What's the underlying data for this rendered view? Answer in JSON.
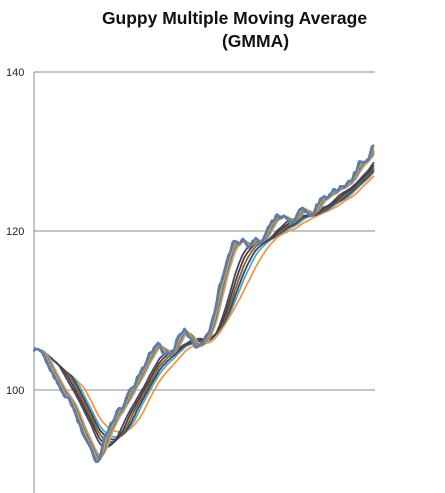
{
  "chart_data": {
    "type": "line",
    "title": [
      "Guppy Multiple Moving Average",
      "(GMMA)"
    ],
    "xlabel": "",
    "ylabel": "",
    "ylim": [
      89,
      142
    ],
    "yticks": [
      100,
      120,
      140
    ],
    "gridlines": true,
    "legend": "none",
    "x_range": [
      0,
      100
    ],
    "price_path": [
      [
        0,
        105.3
      ],
      [
        1,
        105.1
      ],
      [
        2,
        104.6
      ],
      [
        3,
        103.8
      ],
      [
        4,
        102.9
      ],
      [
        5,
        102.0
      ],
      [
        6,
        101.2
      ],
      [
        7,
        100.3
      ],
      [
        8,
        99.7
      ],
      [
        10,
        98.7
      ],
      [
        11,
        98.0
      ],
      [
        12,
        96.9
      ],
      [
        13,
        95.6
      ],
      [
        14,
        94.6
      ],
      [
        15,
        93.8
      ],
      [
        16,
        92.9
      ],
      [
        17,
        91.8
      ],
      [
        18,
        90.6
      ],
      [
        19,
        91.4
      ],
      [
        20,
        93.5
      ],
      [
        21,
        94.7
      ],
      [
        22,
        95.6
      ],
      [
        23,
        96.2
      ],
      [
        24,
        97.0
      ],
      [
        25,
        97.6
      ],
      [
        26,
        98.3
      ],
      [
        27,
        99.2
      ],
      [
        28,
        100.2
      ],
      [
        29,
        100.4
      ],
      [
        30,
        101.4
      ],
      [
        31,
        102.2
      ],
      [
        32,
        103.0
      ],
      [
        33,
        104.0
      ],
      [
        34,
        104.8
      ],
      [
        35,
        105.3
      ],
      [
        36,
        105.8
      ],
      [
        37,
        105.1
      ],
      [
        38,
        104.3
      ],
      [
        39,
        104.8
      ],
      [
        40,
        104.2
      ],
      [
        41,
        105.4
      ],
      [
        42,
        106.4
      ],
      [
        43,
        107.2
      ],
      [
        44,
        107.6
      ],
      [
        45,
        106.9
      ],
      [
        46,
        106.3
      ],
      [
        47,
        105.4
      ],
      [
        48,
        105.6
      ],
      [
        49,
        105.9
      ],
      [
        50,
        106.3
      ],
      [
        51,
        107.0
      ],
      [
        52,
        108.5
      ],
      [
        53,
        110.6
      ],
      [
        54,
        112.8
      ],
      [
        55,
        114.2
      ],
      [
        56,
        115.4
      ],
      [
        57,
        117.1
      ],
      [
        58,
        118.4
      ],
      [
        59,
        118.8
      ],
      [
        60,
        118.5
      ],
      [
        61,
        119.0
      ],
      [
        62,
        118.6
      ],
      [
        63,
        118.1
      ],
      [
        64,
        118.5
      ],
      [
        65,
        118.9
      ],
      [
        66,
        118.4
      ],
      [
        67,
        118.8
      ],
      [
        68,
        119.7
      ],
      [
        69,
        120.6
      ],
      [
        70,
        121.3
      ],
      [
        71,
        121.9
      ],
      [
        72,
        121.6
      ],
      [
        73,
        121.8
      ],
      [
        74,
        121.5
      ],
      [
        75,
        121.0
      ],
      [
        76,
        121.2
      ],
      [
        77,
        121.9
      ],
      [
        78,
        122.8
      ],
      [
        79,
        123.1
      ],
      [
        80,
        122.3
      ],
      [
        81,
        121.8
      ],
      [
        82,
        122.4
      ],
      [
        83,
        123.4
      ],
      [
        84,
        123.9
      ],
      [
        85,
        124.2
      ],
      [
        86,
        124.3
      ],
      [
        87,
        124.9
      ],
      [
        88,
        125.2
      ],
      [
        89,
        125.0
      ],
      [
        90,
        125.6
      ],
      [
        91,
        125.4
      ],
      [
        92,
        125.9
      ],
      [
        93,
        126.4
      ],
      [
        94,
        127.3
      ],
      [
        95,
        128.2
      ],
      [
        96,
        129.0
      ],
      [
        97,
        128.7
      ],
      [
        98,
        129.4
      ],
      [
        99,
        130.5
      ],
      [
        100,
        130.7
      ]
    ],
    "series": [
      {
        "name": "",
        "color": "#4f81bd",
        "period": 3
      },
      {
        "name": "",
        "color": "#c0504d",
        "period": 5
      },
      {
        "name": "",
        "color": "#9bbb59",
        "period": 8
      },
      {
        "name": "",
        "color": "#8064a2",
        "period": 10
      },
      {
        "name": "",
        "color": "#4bacc6",
        "period": 12
      },
      {
        "name": "",
        "color": "#f79646",
        "period": 15
      },
      {
        "name": "",
        "color": "#2c4d75",
        "period": 30
      },
      {
        "name": "",
        "color": "#772c2a",
        "period": 35
      },
      {
        "name": "",
        "color": "#5f7530",
        "period": 40
      },
      {
        "name": "",
        "color": "#4d3b62",
        "period": 45
      },
      {
        "name": "",
        "color": "#4bacc6",
        "period": 50
      },
      {
        "name": "",
        "color": "#f79646",
        "period": 60
      }
    ]
  }
}
